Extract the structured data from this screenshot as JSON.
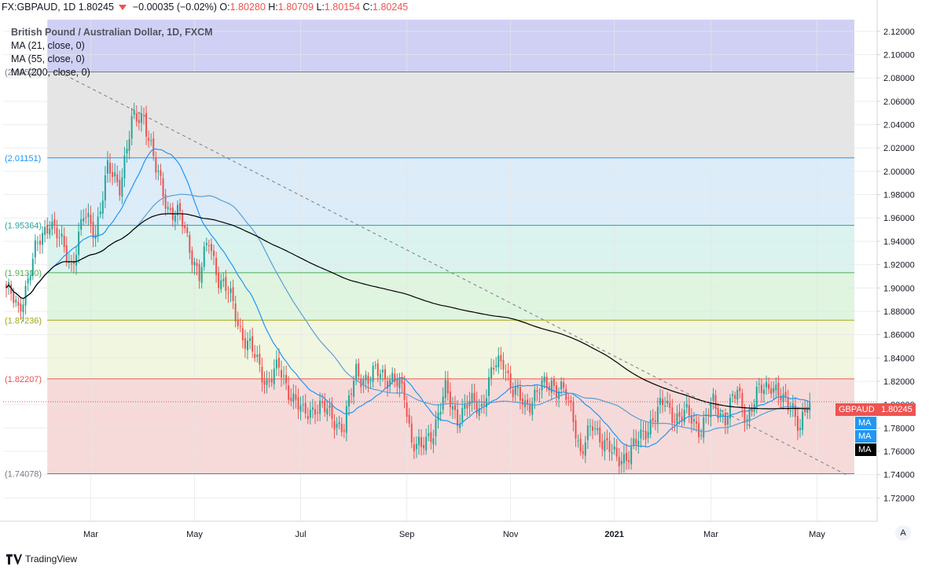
{
  "header": {
    "symbol": "FX:GBPAUD, 1D",
    "last": "1.80245",
    "change": "−0.00035 (−0.02%)",
    "o_label": "O:",
    "o": "1.80280",
    "h_label": "H:",
    "h": "1.80709",
    "l_label": "L:",
    "l": "1.80154",
    "c_label": "C:",
    "c": "1.80245"
  },
  "legend": {
    "title": "British Pound / Australian Dollar, 1D, FXCM",
    "ma1": "MA (21, close, 0)",
    "ma2": "MA (55, close, 0)",
    "ma3": "MA (200, close, 0)"
  },
  "price_tag": {
    "symbol": "GBPAUD",
    "value": "1.80245",
    "ma1": "MA",
    "ma2": "MA",
    "ma3": "MA"
  },
  "footer": {
    "brand": "TradingView",
    "scale_button": "A"
  },
  "colors": {
    "up": "#26a69a",
    "down": "#ef5350",
    "ma21": "#2196f3",
    "ma55": "#5a9fd4",
    "ma200": "#000000"
  },
  "chart_data": {
    "type": "candlestick",
    "title": "British Pound / Australian Dollar, 1D, FXCM",
    "ylim": [
      1.7,
      2.13
    ],
    "y_ticks": [
      "2.12000",
      "2.10000",
      "2.08000",
      "2.06000",
      "2.04000",
      "2.02000",
      "2.00000",
      "1.98000",
      "1.96000",
      "1.94000",
      "1.92000",
      "1.90000",
      "1.88000",
      "1.86000",
      "1.84000",
      "1.82000",
      "1.80000",
      "1.78000",
      "1.76000",
      "1.74000",
      "1.72000"
    ],
    "x_ticks": [
      {
        "label": "Mar",
        "bar": 35
      },
      {
        "label": "May",
        "bar": 78
      },
      {
        "label": "Jul",
        "bar": 122
      },
      {
        "label": "Sep",
        "bar": 166
      },
      {
        "label": "Nov",
        "bar": 209
      },
      {
        "label": "2021",
        "bar": 252
      },
      {
        "label": "Mar",
        "bar": 292
      },
      {
        "label": "May",
        "bar": 336
      }
    ],
    "fib_levels": [
      {
        "label": "(2.08522)",
        "value": 2.08522,
        "color": "#787b86",
        "fill": "#e0e0e0"
      },
      {
        "label": "(2.01151)",
        "value": 2.01151,
        "color": "#2196f3",
        "fill": "#d6e9f8"
      },
      {
        "label": "(1.95364)",
        "value": 1.95364,
        "color": "#26a69a",
        "fill": "#d4f1ec"
      },
      {
        "label": "(1.91310)",
        "value": 1.9131,
        "color": "#4caf50",
        "fill": "#d9f3d9"
      },
      {
        "label": "(1.87236)",
        "value": 1.87236,
        "color": "#9fa814",
        "fill": "#eef4dc"
      },
      {
        "label": "(1.82207)",
        "value": 1.82207,
        "color": "#ef5350",
        "fill": "#f4d3d3"
      },
      {
        "label": "(1.74078)",
        "value": 1.74078,
        "color": "#787b86",
        "fill": ""
      }
    ],
    "fib_top_fill": {
      "from": 2.08522,
      "to": 2.13,
      "color": "#d0d0f5"
    },
    "trendline": [
      {
        "bar": 22,
        "price": 2.085
      },
      {
        "bar": 348,
        "price": 1.74
      }
    ],
    "anchors": [
      [
        0,
        1.9
      ],
      [
        5,
        1.88
      ],
      [
        12,
        1.93
      ],
      [
        18,
        1.96
      ],
      [
        22,
        1.94
      ],
      [
        27,
        1.92
      ],
      [
        32,
        1.96
      ],
      [
        37,
        1.95
      ],
      [
        42,
        2.0
      ],
      [
        47,
        1.99
      ],
      [
        52,
        2.04
      ],
      [
        57,
        2.05
      ],
      [
        62,
        2.0
      ],
      [
        67,
        1.97
      ],
      [
        72,
        1.96
      ],
      [
        77,
        1.93
      ],
      [
        80,
        1.91
      ],
      [
        84,
        1.94
      ],
      [
        88,
        1.91
      ],
      [
        93,
        1.89
      ],
      [
        98,
        1.86
      ],
      [
        103,
        1.84
      ],
      [
        108,
        1.82
      ],
      [
        113,
        1.83
      ],
      [
        118,
        1.81
      ],
      [
        123,
        1.79
      ],
      [
        128,
        1.8
      ],
      [
        135,
        1.79
      ],
      [
        140,
        1.78
      ],
      [
        145,
        1.83
      ],
      [
        150,
        1.82
      ],
      [
        155,
        1.83
      ],
      [
        160,
        1.82
      ],
      [
        165,
        1.81
      ],
      [
        168,
        1.77
      ],
      [
        172,
        1.76
      ],
      [
        177,
        1.78
      ],
      [
        182,
        1.81
      ],
      [
        187,
        1.79
      ],
      [
        192,
        1.8
      ],
      [
        197,
        1.8
      ],
      [
        202,
        1.83
      ],
      [
        206,
        1.84
      ],
      [
        210,
        1.81
      ],
      [
        215,
        1.8
      ],
      [
        220,
        1.81
      ],
      [
        226,
        1.82
      ],
      [
        231,
        1.81
      ],
      [
        235,
        1.79
      ],
      [
        238,
        1.76
      ],
      [
        243,
        1.78
      ],
      [
        248,
        1.77
      ],
      [
        253,
        1.75
      ],
      [
        258,
        1.76
      ],
      [
        263,
        1.77
      ],
      [
        268,
        1.79
      ],
      [
        273,
        1.8
      ],
      [
        278,
        1.79
      ],
      [
        283,
        1.79
      ],
      [
        288,
        1.78
      ],
      [
        293,
        1.8
      ],
      [
        298,
        1.79
      ],
      [
        303,
        1.81
      ],
      [
        307,
        1.79
      ],
      [
        312,
        1.81
      ],
      [
        317,
        1.82
      ],
      [
        322,
        1.8
      ],
      [
        326,
        1.8
      ],
      [
        329,
        1.78
      ],
      [
        333,
        1.802
      ]
    ],
    "series": [
      {
        "name": "MA (21, close, 0)",
        "color": "#2196f3"
      },
      {
        "name": "MA (55, close, 0)",
        "color": "#5a9fd4"
      },
      {
        "name": "MA (200, close, 0)",
        "color": "#000000"
      }
    ],
    "last_price": 1.80245
  }
}
